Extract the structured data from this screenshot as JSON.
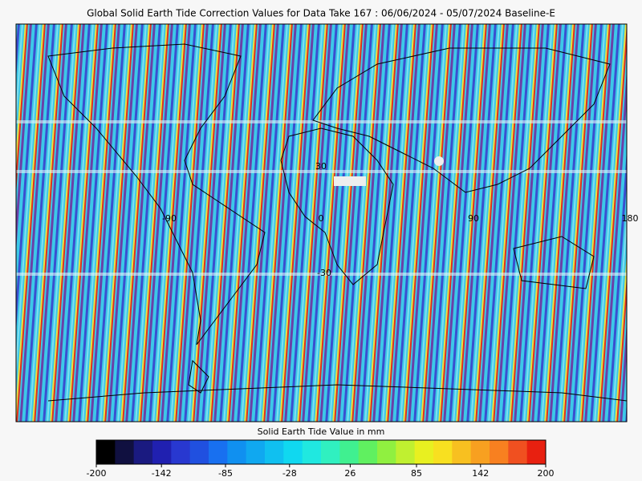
{
  "title": "Global Solid Earth Tide Correction Values for Data Take 167 : 06/06/2024 - 05/07/2024 Baseline-E",
  "map": {
    "lon_labels": [
      "-90",
      "0",
      "90",
      "180"
    ],
    "lat_labels": [
      "30",
      "-30"
    ]
  },
  "colorbar": {
    "label": "Solid Earth Tide Value in mm",
    "lim": [
      -200,
      200
    ],
    "ticks": [
      -200,
      -142,
      -85,
      -28,
      26,
      85,
      142,
      200
    ],
    "colors": [
      "#000000",
      "#101040",
      "#1a1a80",
      "#2020b0",
      "#2838d0",
      "#2050e0",
      "#1870f0",
      "#1090f0",
      "#10a8f0",
      "#10c0f0",
      "#10d8f0",
      "#20e8e0",
      "#30f0c0",
      "#40f090",
      "#60f060",
      "#90f040",
      "#c0f030",
      "#e8f020",
      "#f8e020",
      "#f8c020",
      "#f8a020",
      "#f88020",
      "#f05020",
      "#e82010"
    ]
  }
}
